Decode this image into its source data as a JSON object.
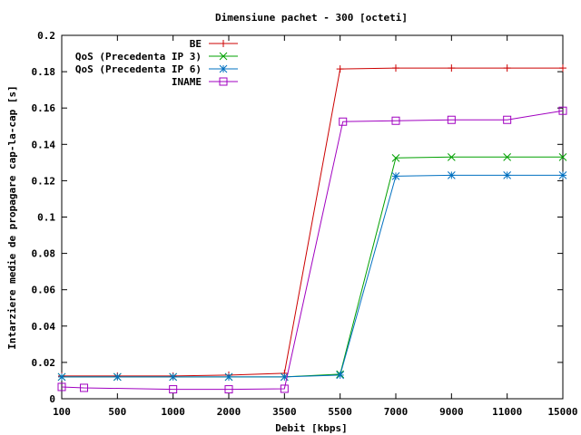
{
  "chart_data": {
    "type": "line",
    "title": "Dimensiune pachet - 300 [octeti]",
    "xlabel": "Debit [kbps]",
    "ylabel": "Intarziere medie de propagare cap-la-cap [s]",
    "categories": [
      "100",
      "500",
      "1000",
      "2000",
      "3500",
      "5500",
      "7000",
      "9000",
      "11000",
      "15000"
    ],
    "ylim": [
      0,
      0.2
    ],
    "yticks": [
      "0",
      "0.02",
      "0.04",
      "0.06",
      "0.08",
      "0.1",
      "0.12",
      "0.14",
      "0.16",
      "0.18",
      "0.2"
    ],
    "grid": false,
    "legend_position": "top-left",
    "series": [
      {
        "name": "BE",
        "color": "#cc0000",
        "marker": "plus",
        "x": [
          0,
          1,
          2,
          3,
          4,
          5,
          6,
          7,
          8,
          9
        ],
        "values": [
          0.0125,
          0.0125,
          0.0125,
          0.013,
          0.014,
          0.1815,
          0.182,
          0.182,
          0.182,
          0.182
        ]
      },
      {
        "name": "QoS (Precedenta IP 3)",
        "color": "#00a000",
        "marker": "cross",
        "x": [
          0,
          1,
          2,
          3,
          4,
          5,
          6,
          7,
          8,
          9
        ],
        "values": [
          0.012,
          0.012,
          0.012,
          0.012,
          0.012,
          0.0135,
          0.1325,
          0.133,
          0.133,
          0.133
        ]
      },
      {
        "name": "QoS (Precedenta IP 6)",
        "color": "#0070c0",
        "marker": "star",
        "x": [
          0,
          1,
          2,
          3,
          4,
          5,
          6,
          7,
          8,
          9
        ],
        "values": [
          0.012,
          0.012,
          0.012,
          0.012,
          0.012,
          0.013,
          0.1225,
          0.123,
          0.123,
          0.123
        ]
      },
      {
        "name": "INAME",
        "color": "#a000c0",
        "marker": "square",
        "x": [
          0,
          0.4,
          2,
          3,
          4,
          5.05,
          6,
          7,
          8,
          9
        ],
        "values": [
          0.0065,
          0.006,
          0.0052,
          0.0052,
          0.0055,
          0.1525,
          0.153,
          0.1535,
          0.1535,
          0.1585
        ]
      }
    ]
  }
}
